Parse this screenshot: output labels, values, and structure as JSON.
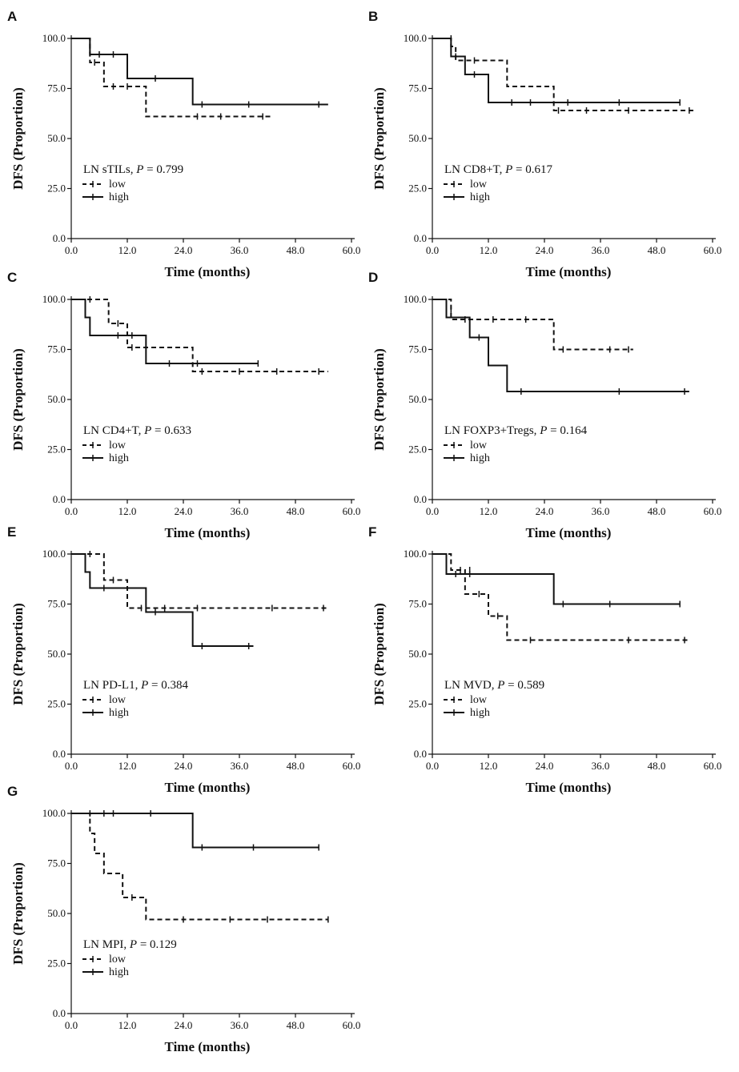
{
  "colors": {
    "line": "#111111",
    "background": "#ffffff"
  },
  "chart_data": [
    {
      "panel": "A",
      "type": "line",
      "title": "",
      "xlabel": "Time (months)",
      "ylabel": "DFS (Proportion)",
      "xlim": [
        0,
        60
      ],
      "ylim": [
        0,
        100
      ],
      "xticks": [
        "0.0",
        "12.0",
        "24.0",
        "36.0",
        "48.0",
        "60.0"
      ],
      "yticks": [
        "0.0",
        "25.0",
        "50.0",
        "75.0",
        "100.0"
      ],
      "annotation_prefix": "LN sTILs, ",
      "p_label": "P",
      "p_value": " = 0.799",
      "series": [
        {
          "name": "low",
          "style": "dashed",
          "steps": [
            [
              0,
              100
            ],
            [
              4,
              88
            ],
            [
              7,
              76
            ],
            [
              16,
              61
            ],
            [
              43,
              61
            ]
          ],
          "censors": [
            [
              5,
              88
            ],
            [
              9,
              76
            ],
            [
              12,
              76
            ],
            [
              27,
              61
            ],
            [
              32,
              61
            ],
            [
              41,
              61
            ]
          ]
        },
        {
          "name": "high",
          "style": "solid",
          "steps": [
            [
              0,
              100
            ],
            [
              4,
              92
            ],
            [
              12,
              80
            ],
            [
              26,
              67
            ],
            [
              55,
              67
            ]
          ],
          "censors": [
            [
              6,
              92
            ],
            [
              9,
              92
            ],
            [
              18,
              80
            ],
            [
              28,
              67
            ],
            [
              38,
              67
            ],
            [
              53,
              67
            ]
          ]
        }
      ]
    },
    {
      "panel": "B",
      "type": "line",
      "title": "",
      "xlabel": "Time (months)",
      "ylabel": "DFS (Proportion)",
      "xlim": [
        0,
        60
      ],
      "ylim": [
        0,
        100
      ],
      "xticks": [
        "0.0",
        "12.0",
        "24.0",
        "36.0",
        "48.0",
        "60.0"
      ],
      "yticks": [
        "0.0",
        "25.0",
        "50.0",
        "75.0",
        "100.0"
      ],
      "annotation_prefix": "LN CD8+T, ",
      "p_label": "P",
      "p_value": " = 0.617",
      "series": [
        {
          "name": "low",
          "style": "dashed",
          "steps": [
            [
              0,
              100
            ],
            [
              4,
              96
            ],
            [
              5,
              89
            ],
            [
              16,
              76
            ],
            [
              26,
              64
            ],
            [
              56,
              64
            ]
          ],
          "censors": [
            [
              4,
              100
            ],
            [
              9,
              89
            ],
            [
              27,
              64
            ],
            [
              33,
              64
            ],
            [
              42,
              64
            ],
            [
              55,
              64
            ]
          ]
        },
        {
          "name": "high",
          "style": "solid",
          "steps": [
            [
              0,
              100
            ],
            [
              4,
              91
            ],
            [
              7,
              82
            ],
            [
              12,
              68
            ],
            [
              53,
              68
            ]
          ],
          "censors": [
            [
              5,
              91
            ],
            [
              9,
              82
            ],
            [
              17,
              68
            ],
            [
              21,
              68
            ],
            [
              29,
              68
            ],
            [
              40,
              68
            ],
            [
              53,
              68
            ]
          ]
        }
      ]
    },
    {
      "panel": "C",
      "type": "line",
      "title": "",
      "xlabel": "Time (months)",
      "ylabel": "DFS (Proportion)",
      "xlim": [
        0,
        60
      ],
      "ylim": [
        0,
        100
      ],
      "xticks": [
        "0.0",
        "12.0",
        "24.0",
        "36.0",
        "48.0",
        "60.0"
      ],
      "yticks": [
        "0.0",
        "25.0",
        "50.0",
        "75.0",
        "100.0"
      ],
      "annotation_prefix": "LN CD4+T, ",
      "p_label": "P",
      "p_value": " = 0.633",
      "series": [
        {
          "name": "low",
          "style": "dashed",
          "steps": [
            [
              0,
              100
            ],
            [
              8,
              88
            ],
            [
              12,
              76
            ],
            [
              26,
              64
            ],
            [
              55,
              64
            ]
          ],
          "censors": [
            [
              4,
              100
            ],
            [
              10,
              88
            ],
            [
              13,
              76
            ],
            [
              28,
              64
            ],
            [
              36,
              64
            ],
            [
              44,
              64
            ],
            [
              53,
              64
            ]
          ]
        },
        {
          "name": "high",
          "style": "solid",
          "steps": [
            [
              0,
              100
            ],
            [
              3,
              91
            ],
            [
              4,
              82
            ],
            [
              16,
              68
            ],
            [
              40,
              68
            ]
          ],
          "censors": [
            [
              10,
              82
            ],
            [
              13,
              82
            ],
            [
              21,
              68
            ],
            [
              27,
              68
            ],
            [
              40,
              68
            ]
          ]
        }
      ]
    },
    {
      "panel": "D",
      "type": "line",
      "title": "",
      "xlabel": "Time (months)",
      "ylabel": "DFS (Proportion)",
      "xlim": [
        0,
        60
      ],
      "ylim": [
        0,
        100
      ],
      "xticks": [
        "0.0",
        "12.0",
        "24.0",
        "36.0",
        "48.0",
        "60.0"
      ],
      "yticks": [
        "0.0",
        "25.0",
        "50.0",
        "75.0",
        "100.0"
      ],
      "annotation_prefix": "LN FOXP3+Tregs, ",
      "p_label": "P",
      "p_value": " = 0.164",
      "series": [
        {
          "name": "low",
          "style": "dashed",
          "steps": [
            [
              0,
              100
            ],
            [
              4,
              90
            ],
            [
              26,
              75
            ],
            [
              43,
              75
            ]
          ],
          "censors": [
            [
              4,
              95
            ],
            [
              7,
              90
            ],
            [
              13,
              90
            ],
            [
              20,
              90
            ],
            [
              28,
              75
            ],
            [
              38,
              75
            ],
            [
              42,
              75
            ]
          ]
        },
        {
          "name": "high",
          "style": "solid",
          "steps": [
            [
              0,
              100
            ],
            [
              3,
              91
            ],
            [
              8,
              81
            ],
            [
              12,
              67
            ],
            [
              16,
              54
            ],
            [
              55,
              54
            ]
          ],
          "censors": [
            [
              10,
              81
            ],
            [
              19,
              54
            ],
            [
              40,
              54
            ],
            [
              54,
              54
            ]
          ]
        }
      ]
    },
    {
      "panel": "E",
      "type": "line",
      "title": "",
      "xlabel": "Time (months)",
      "ylabel": "DFS (Proportion)",
      "xlim": [
        0,
        60
      ],
      "ylim": [
        0,
        100
      ],
      "xticks": [
        "0.0",
        "12.0",
        "24.0",
        "36.0",
        "48.0",
        "60.0"
      ],
      "yticks": [
        "0.0",
        "25.0",
        "50.0",
        "75.0",
        "100.0"
      ],
      "annotation_prefix": "LN PD-L1, ",
      "p_label": "P",
      "p_value": " = 0.384",
      "series": [
        {
          "name": "low",
          "style": "dashed",
          "steps": [
            [
              0,
              100
            ],
            [
              7,
              87
            ],
            [
              12,
              73
            ],
            [
              55,
              73
            ]
          ],
          "censors": [
            [
              4,
              100
            ],
            [
              9,
              87
            ],
            [
              15,
              73
            ],
            [
              20,
              73
            ],
            [
              27,
              73
            ],
            [
              43,
              73
            ],
            [
              54,
              73
            ]
          ]
        },
        {
          "name": "high",
          "style": "solid",
          "steps": [
            [
              0,
              100
            ],
            [
              3,
              91
            ],
            [
              4,
              83
            ],
            [
              16,
              71
            ],
            [
              26,
              54
            ],
            [
              39,
              54
            ]
          ],
          "censors": [
            [
              7,
              83
            ],
            [
              18,
              71
            ],
            [
              28,
              54
            ],
            [
              38,
              54
            ]
          ]
        }
      ]
    },
    {
      "panel": "F",
      "type": "line",
      "title": "",
      "xlabel": "Time (months)",
      "ylabel": "DFS (Proportion)",
      "xlim": [
        0,
        60
      ],
      "ylim": [
        0,
        100
      ],
      "xticks": [
        "0.0",
        "12.0",
        "24.0",
        "36.0",
        "48.0",
        "60.0"
      ],
      "yticks": [
        "0.0",
        "25.0",
        "50.0",
        "75.0",
        "100.0"
      ],
      "annotation_prefix": "LN MVD, ",
      "p_label": "P",
      "p_value": " = 0.589",
      "series": [
        {
          "name": "low",
          "style": "dashed",
          "steps": [
            [
              0,
              100
            ],
            [
              4,
              92
            ],
            [
              7,
              80
            ],
            [
              12,
              69
            ],
            [
              16,
              57
            ],
            [
              55,
              57
            ]
          ],
          "censors": [
            [
              6,
              92
            ],
            [
              8,
              92
            ],
            [
              10,
              80
            ],
            [
              14,
              69
            ],
            [
              21,
              57
            ],
            [
              42,
              57
            ],
            [
              54,
              57
            ]
          ]
        },
        {
          "name": "high",
          "style": "solid",
          "steps": [
            [
              0,
              100
            ],
            [
              3,
              90
            ],
            [
              26,
              75
            ],
            [
              53,
              75
            ]
          ],
          "censors": [
            [
              5,
              90
            ],
            [
              8,
              90
            ],
            [
              28,
              75
            ],
            [
              38,
              75
            ],
            [
              53,
              75
            ]
          ]
        }
      ]
    },
    {
      "panel": "G",
      "type": "line",
      "title": "",
      "xlabel": "Time (months)",
      "ylabel": "DFS (Proportion)",
      "xlim": [
        0,
        60
      ],
      "ylim": [
        0,
        100
      ],
      "xticks": [
        "0.0",
        "12.0",
        "24.0",
        "36.0",
        "48.0",
        "60.0"
      ],
      "yticks": [
        "0.0",
        "25.0",
        "50.0",
        "75.0",
        "100.0"
      ],
      "annotation_prefix": "LN MPI, ",
      "p_label": "P",
      "p_value": " = 0.129",
      "series": [
        {
          "name": "low",
          "style": "dashed",
          "steps": [
            [
              0,
              100
            ],
            [
              4,
              90
            ],
            [
              5,
              80
            ],
            [
              7,
              70
            ],
            [
              11,
              58
            ],
            [
              16,
              47
            ],
            [
              55,
              47
            ]
          ],
          "censors": [
            [
              13,
              58
            ],
            [
              24,
              47
            ],
            [
              34,
              47
            ],
            [
              42,
              47
            ],
            [
              55,
              47
            ]
          ]
        },
        {
          "name": "high",
          "style": "solid",
          "steps": [
            [
              0,
              100
            ],
            [
              26,
              83
            ],
            [
              53,
              83
            ]
          ],
          "censors": [
            [
              4,
              100
            ],
            [
              7,
              100
            ],
            [
              9,
              100
            ],
            [
              17,
              100
            ],
            [
              28,
              83
            ],
            [
              39,
              83
            ],
            [
              53,
              83
            ]
          ]
        }
      ]
    }
  ]
}
